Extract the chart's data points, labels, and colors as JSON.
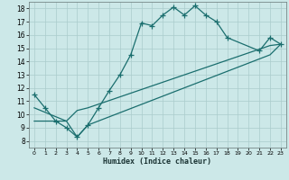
{
  "title": "",
  "xlabel": "Humidex (Indice chaleur)",
  "ylabel": "",
  "bg_color": "#cce8e8",
  "line_color": "#1a6e6e",
  "grid_color": "#aacccc",
  "xlim": [
    -0.5,
    23.5
  ],
  "ylim": [
    7.5,
    18.5
  ],
  "xticks": [
    0,
    1,
    2,
    3,
    4,
    5,
    6,
    7,
    8,
    9,
    10,
    11,
    12,
    13,
    14,
    15,
    16,
    17,
    18,
    19,
    20,
    21,
    22,
    23
  ],
  "yticks": [
    8,
    9,
    10,
    11,
    12,
    13,
    14,
    15,
    16,
    17,
    18
  ],
  "line1_x": [
    0,
    1,
    2,
    3,
    4,
    5,
    6,
    7,
    8,
    9,
    10,
    11,
    12,
    13,
    14,
    15,
    16,
    17,
    18,
    21,
    22,
    23
  ],
  "line1_y": [
    11.5,
    10.5,
    9.5,
    9.0,
    8.3,
    9.2,
    10.5,
    11.8,
    13.0,
    14.5,
    16.9,
    16.7,
    17.5,
    18.1,
    17.5,
    18.2,
    17.5,
    17.0,
    15.8,
    14.8,
    15.8,
    15.3
  ],
  "line2_x": [
    0,
    3,
    4,
    5,
    22,
    23
  ],
  "line2_y": [
    10.5,
    9.5,
    10.3,
    10.5,
    15.2,
    15.3
  ],
  "line3_x": [
    0,
    3,
    4,
    5,
    22,
    23
  ],
  "line3_y": [
    9.5,
    9.5,
    8.3,
    9.2,
    14.5,
    15.3
  ],
  "linewidth": 0.9,
  "marker_size": 3
}
